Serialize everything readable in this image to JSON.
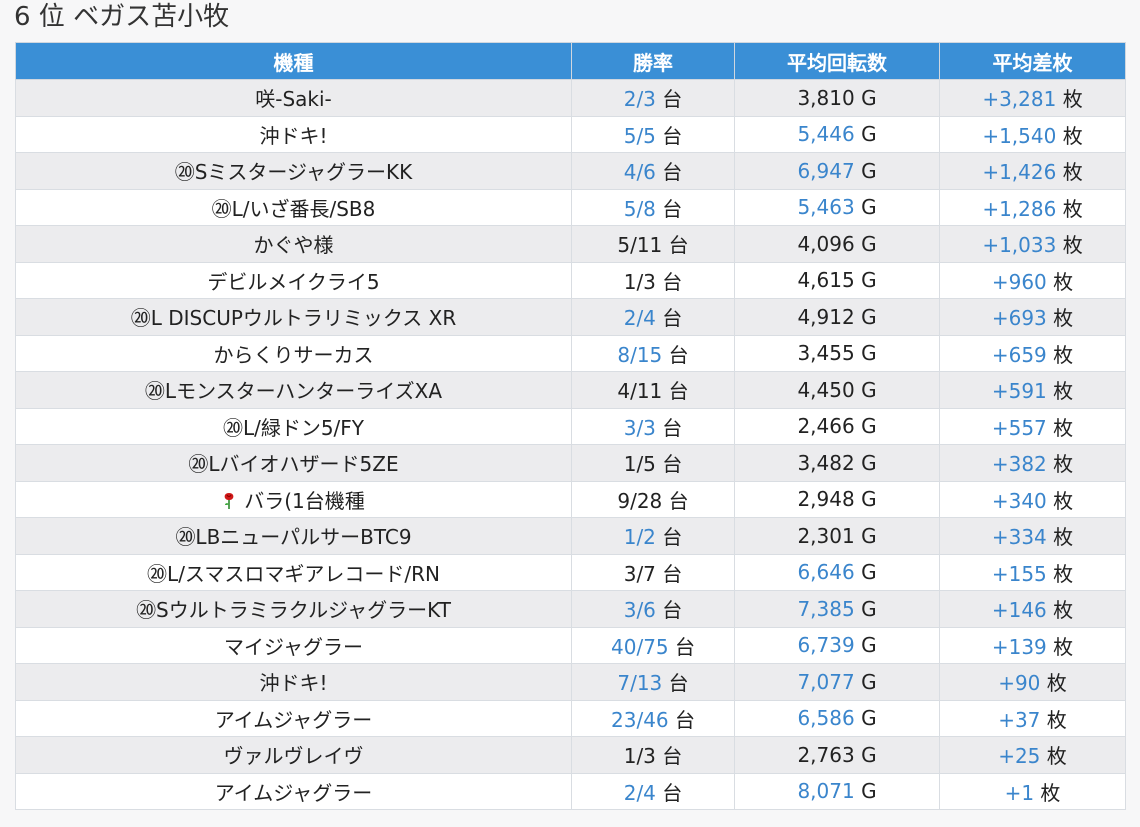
{
  "page": {
    "title": "6 位 ベガス苫小牧"
  },
  "table": {
    "headers": [
      "機種",
      "勝率",
      "平均回転数",
      "平均差枚"
    ],
    "units": {
      "rate": "台",
      "spins": "G",
      "diff": "枚"
    },
    "colors": {
      "header_bg": "#3a8fd6",
      "highlight": "#3a85cc"
    },
    "rows": [
      {
        "name": "咲-Saki-",
        "rate": "2/3",
        "rate_hl": true,
        "spins": "3,810",
        "spins_hl": false,
        "diff": "+3,281",
        "diff_hl": true
      },
      {
        "name": "沖ドキ!",
        "rate": "5/5",
        "rate_hl": true,
        "spins": "5,446",
        "spins_hl": true,
        "diff": "+1,540",
        "diff_hl": true
      },
      {
        "name": "⑳SミスタージャグラーKK",
        "rate": "4/6",
        "rate_hl": true,
        "spins": "6,947",
        "spins_hl": true,
        "diff": "+1,426",
        "diff_hl": true
      },
      {
        "name": "⑳L/いざ番長/SB8",
        "rate": "5/8",
        "rate_hl": true,
        "spins": "5,463",
        "spins_hl": true,
        "diff": "+1,286",
        "diff_hl": true
      },
      {
        "name": "かぐや様",
        "rate": "5/11",
        "rate_hl": false,
        "spins": "4,096",
        "spins_hl": false,
        "diff": "+1,033",
        "diff_hl": true
      },
      {
        "name": "デビルメイクライ5",
        "rate": "1/3",
        "rate_hl": false,
        "spins": "4,615",
        "spins_hl": false,
        "diff": "+960",
        "diff_hl": true
      },
      {
        "name": "⑳L DISCUPウルトラリミックス XR",
        "rate": "2/4",
        "rate_hl": true,
        "spins": "4,912",
        "spins_hl": false,
        "diff": "+693",
        "diff_hl": true
      },
      {
        "name": "からくりサーカス",
        "rate": "8/15",
        "rate_hl": true,
        "spins": "3,455",
        "spins_hl": false,
        "diff": "+659",
        "diff_hl": true
      },
      {
        "name": "⑳LモンスターハンターライズXA",
        "rate": "4/11",
        "rate_hl": false,
        "spins": "4,450",
        "spins_hl": false,
        "diff": "+591",
        "diff_hl": true
      },
      {
        "name": "⑳L/緑ドン5/FY",
        "rate": "3/3",
        "rate_hl": true,
        "spins": "2,466",
        "spins_hl": false,
        "diff": "+557",
        "diff_hl": true
      },
      {
        "name": "⑳Lバイオハザード5ZE",
        "rate": "1/5",
        "rate_hl": false,
        "spins": "3,482",
        "spins_hl": false,
        "diff": "+382",
        "diff_hl": true
      },
      {
        "name": "バラ(1台機種",
        "icon": "rose-icon",
        "rate": "9/28",
        "rate_hl": false,
        "spins": "2,948",
        "spins_hl": false,
        "diff": "+340",
        "diff_hl": true
      },
      {
        "name": "⑳LBニューパルサーBTC9",
        "rate": "1/2",
        "rate_hl": true,
        "spins": "2,301",
        "spins_hl": false,
        "diff": "+334",
        "diff_hl": true
      },
      {
        "name": "⑳L/スマスロマギアレコード/RN",
        "rate": "3/7",
        "rate_hl": false,
        "spins": "6,646",
        "spins_hl": true,
        "diff": "+155",
        "diff_hl": true
      },
      {
        "name": "⑳SウルトラミラクルジャグラーKT",
        "rate": "3/6",
        "rate_hl": true,
        "spins": "7,385",
        "spins_hl": true,
        "diff": "+146",
        "diff_hl": true
      },
      {
        "name": "マイジャグラー",
        "rate": "40/75",
        "rate_hl": true,
        "spins": "6,739",
        "spins_hl": true,
        "diff": "+139",
        "diff_hl": true
      },
      {
        "name": "沖ドキ!",
        "rate": "7/13",
        "rate_hl": true,
        "spins": "7,077",
        "spins_hl": true,
        "diff": "+90",
        "diff_hl": true
      },
      {
        "name": "アイムジャグラー",
        "rate": "23/46",
        "rate_hl": true,
        "spins": "6,586",
        "spins_hl": true,
        "diff": "+37",
        "diff_hl": true
      },
      {
        "name": "ヴァルヴレイヴ",
        "rate": "1/3",
        "rate_hl": false,
        "spins": "2,763",
        "spins_hl": false,
        "diff": "+25",
        "diff_hl": true
      },
      {
        "name": "アイムジャグラー",
        "rate": "2/4",
        "rate_hl": true,
        "spins": "8,071",
        "spins_hl": true,
        "diff": "+1",
        "diff_hl": true
      }
    ]
  }
}
